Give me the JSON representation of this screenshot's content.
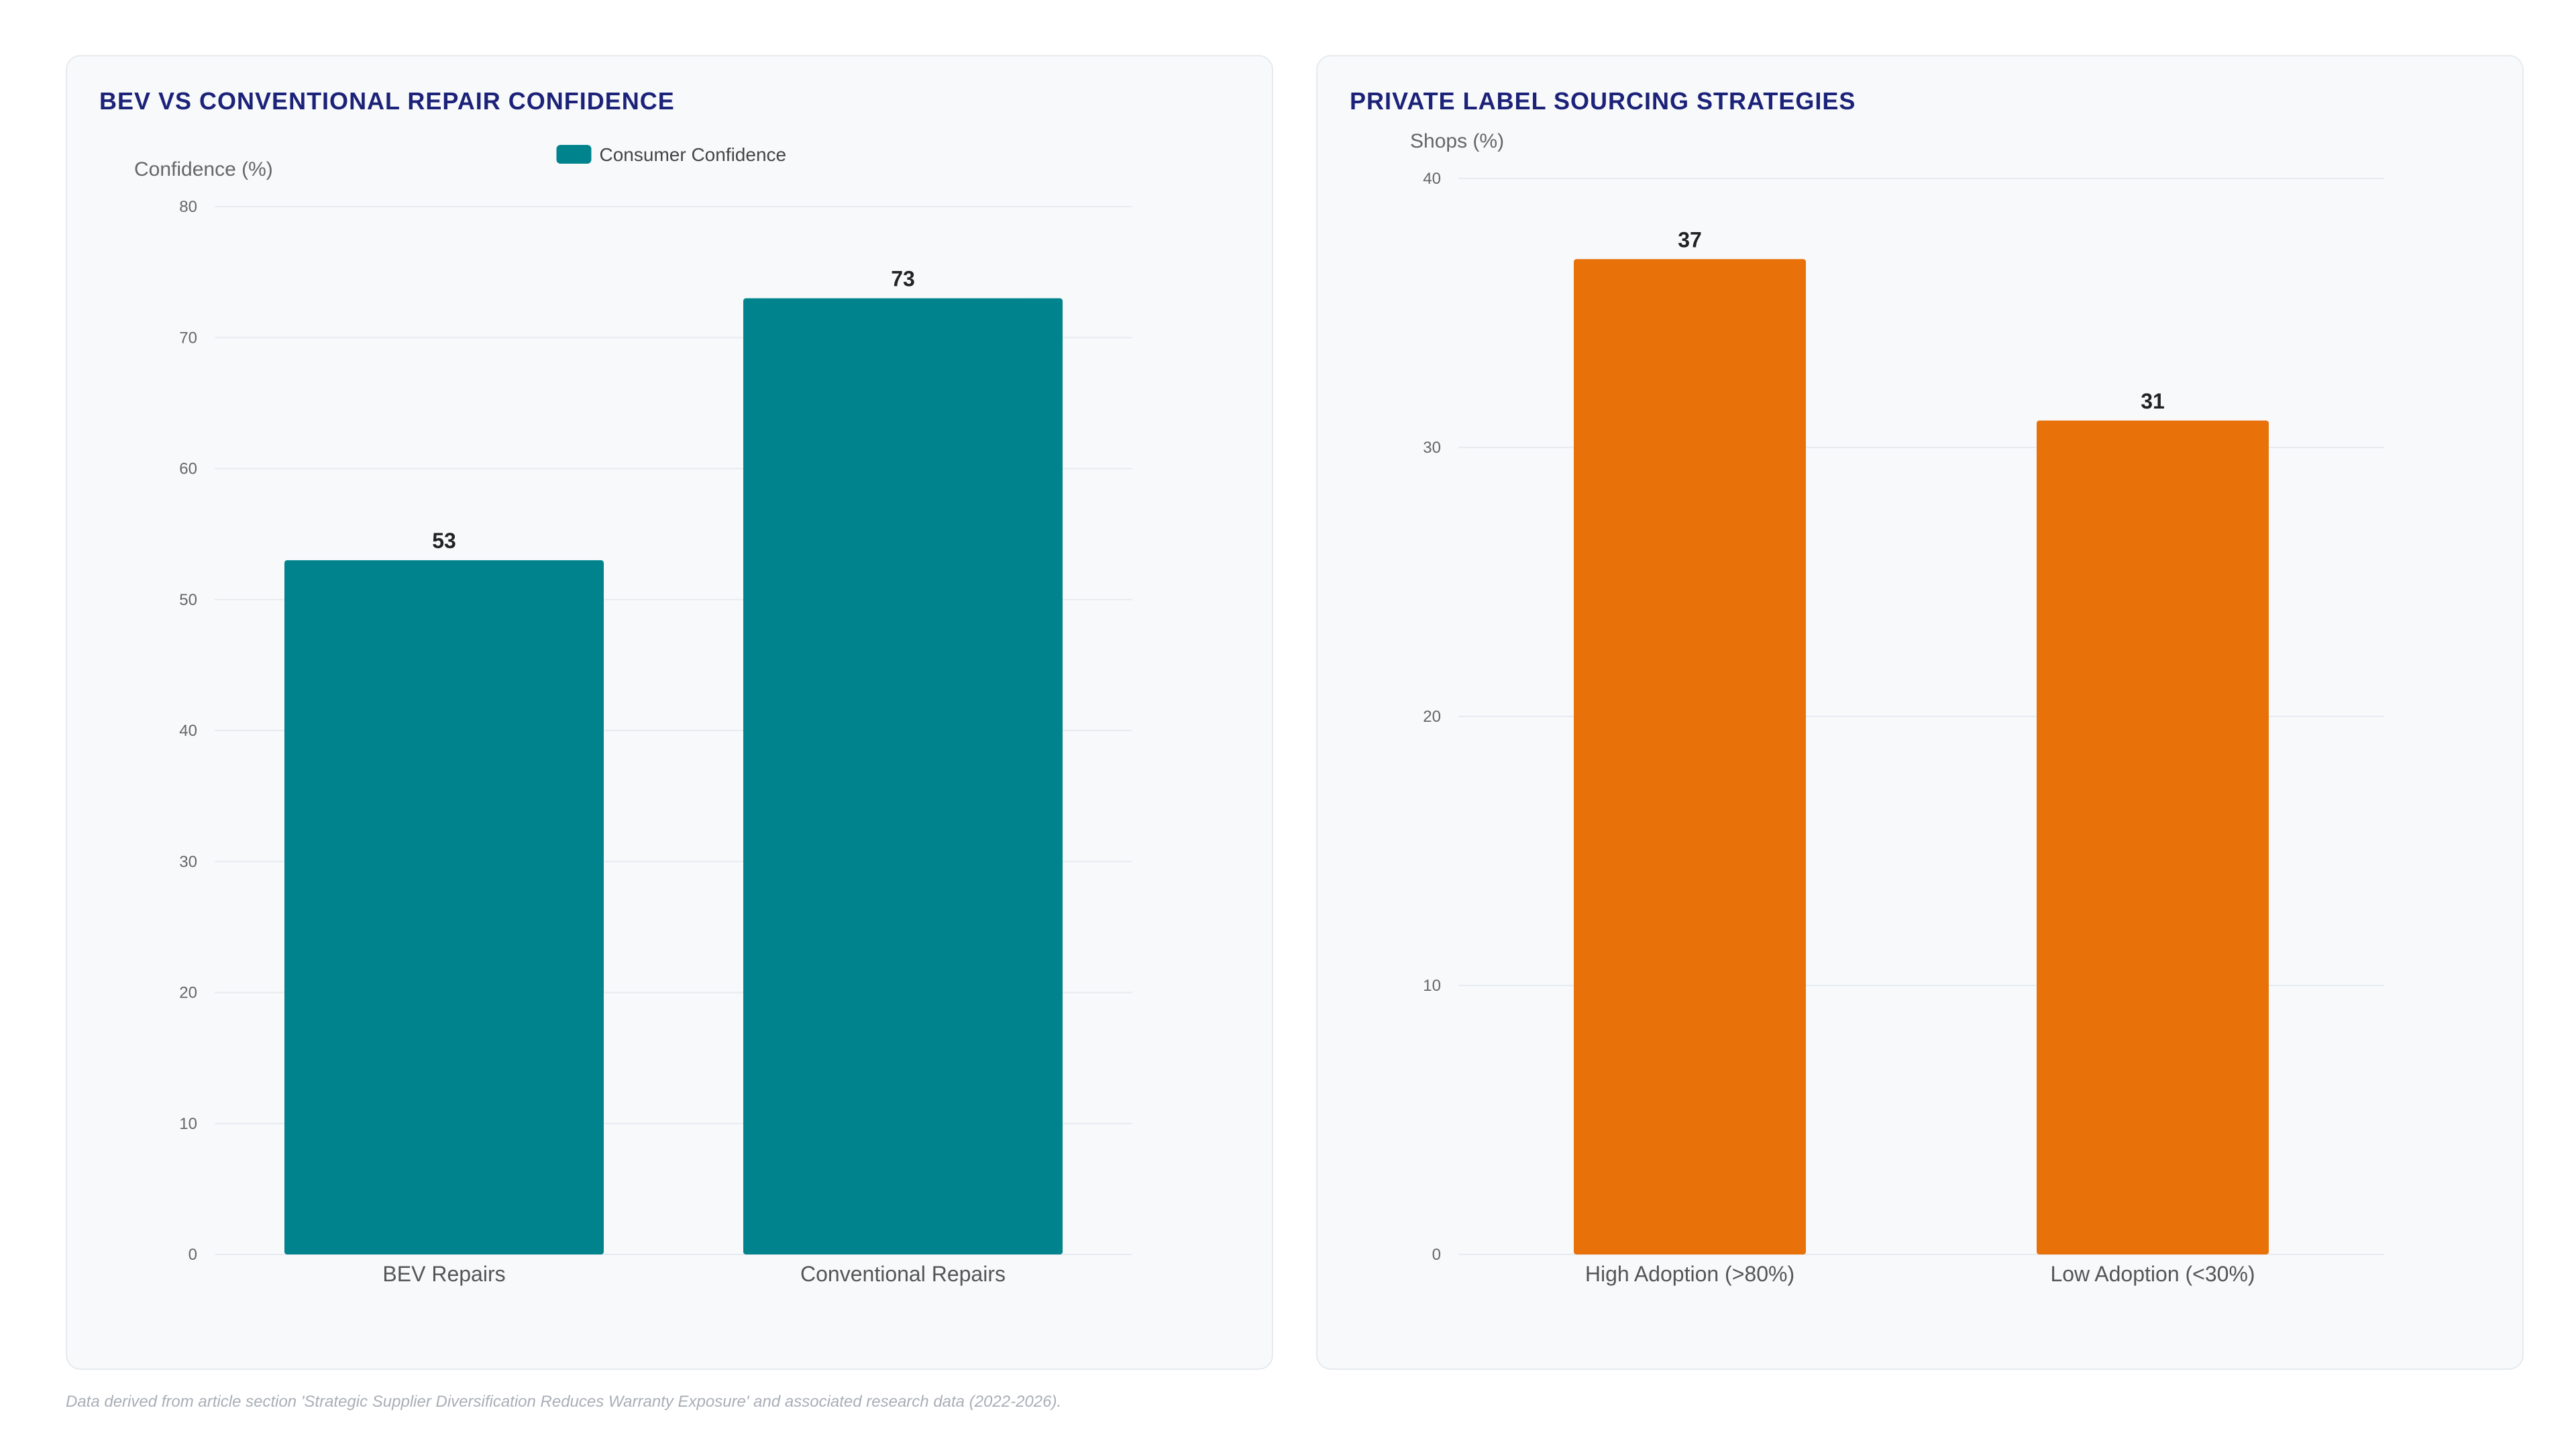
{
  "chart_data": [
    {
      "id": "repair-confidence",
      "type": "bar",
      "title": "BEV VS CONVENTIONAL REPAIR CONFIDENCE",
      "xlabel": "",
      "ylabel": "Confidence (%)",
      "ylim": [
        0,
        80
      ],
      "yticks": [
        0,
        10,
        20,
        30,
        40,
        50,
        60,
        70,
        80
      ],
      "categories": [
        "BEV Repairs",
        "Conventional Repairs"
      ],
      "series": [
        {
          "name": "Consumer Confidence",
          "values": [
            53,
            73
          ],
          "color": "#00838c"
        }
      ],
      "legend": "top-center",
      "grid": true,
      "data_labels": true
    },
    {
      "id": "private-label-sourcing",
      "type": "bar",
      "title": "PRIVATE LABEL SOURCING STRATEGIES",
      "xlabel": "",
      "ylabel": "Shops (%)",
      "ylim": [
        0,
        40
      ],
      "yticks": [
        0,
        10,
        20,
        30,
        40
      ],
      "categories": [
        "High Adoption (>80%)",
        "Low Adoption (<30%)"
      ],
      "series": [
        {
          "values": [
            37,
            31
          ],
          "color": "#e8710a"
        }
      ],
      "legend": "none",
      "grid": true,
      "data_labels": true
    }
  ],
  "footnote": "Data derived from article section 'Strategic Supplier Diversification Reduces Warranty Exposure' and associated research data (2022-2026).",
  "colors": {
    "title": "#1b2278",
    "axis_text": "#666666",
    "grid": "#e8ebef",
    "panel_background": "#f7f9fb"
  }
}
